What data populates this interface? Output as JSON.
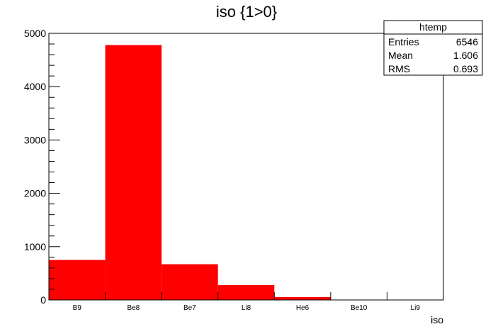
{
  "chart_data": {
    "type": "bar",
    "title": "iso {1>0}",
    "xlabel": "iso",
    "ylabel": "",
    "categories": [
      "B9",
      "Be8",
      "Be7",
      "Li8",
      "He6",
      "Be10",
      "Li9"
    ],
    "values": [
      750,
      4780,
      670,
      280,
      55,
      0,
      0
    ],
    "ylim": [
      0,
      5000
    ],
    "yticks": [
      0,
      1000,
      2000,
      3000,
      4000,
      5000
    ],
    "bar_color": "#ff0000",
    "grid": false,
    "legend_position": "top-right",
    "stats": {
      "name": "htemp",
      "rows": [
        {
          "label": "Entries",
          "value": "6546"
        },
        {
          "label": "Mean",
          "value": "1.606"
        },
        {
          "label": "RMS",
          "value": "0.693"
        }
      ]
    }
  }
}
